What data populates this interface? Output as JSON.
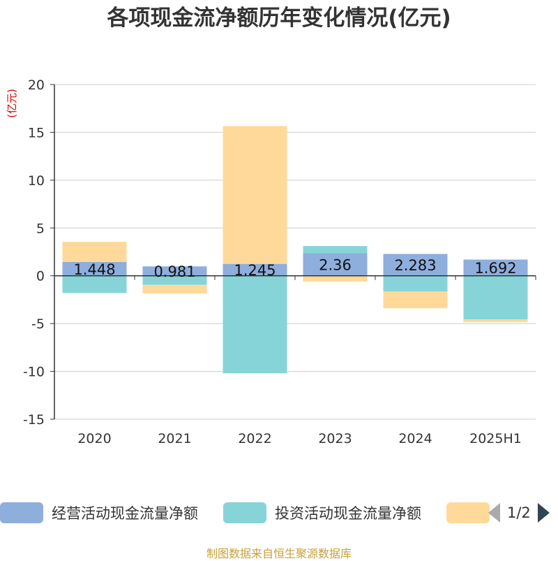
{
  "chart_data": {
    "type": "bar",
    "title": "各项现金流净额历年变化情况(亿元)",
    "ylabel": "(亿元)",
    "categories": [
      "2020",
      "2021",
      "2022",
      "2023",
      "2024",
      "2025H1"
    ],
    "ylim": [
      -15,
      20
    ],
    "yticks": [
      20,
      15,
      10,
      5,
      0,
      -5,
      -10,
      -15
    ],
    "ytick_labels": [
      "20",
      "15",
      "10",
      "5",
      "0",
      "-5",
      "-10",
      "-15"
    ],
    "grid": true,
    "legend_position": "bottom",
    "stacked": true,
    "series": [
      {
        "name": "经营活动现金流量净额",
        "color": "#8eaedc",
        "values": [
          1.448,
          0.981,
          1.245,
          2.36,
          2.283,
          1.692
        ],
        "labels": [
          "1.448",
          "0.981",
          "1.245",
          "2.36",
          "2.283",
          "1.692"
        ]
      },
      {
        "name": "投资活动现金流量净额",
        "color": "#86d4d8",
        "values": [
          -1.8,
          -0.95,
          -10.2,
          0.75,
          -1.65,
          -4.55
        ]
      },
      {
        "name": "",
        "color": "#ffd99a",
        "values": [
          2.1,
          -0.9,
          14.4,
          -0.6,
          -1.75,
          -0.3
        ]
      }
    ]
  },
  "legend": {
    "items": [
      {
        "label": "经营活动现金流量净额",
        "color": "#8eaedc"
      },
      {
        "label": "投资活动现金流量净额",
        "color": "#86d4d8"
      },
      {
        "label": "",
        "color": "#ffd99a"
      }
    ],
    "page": "1/2"
  },
  "source": "制图数据来自恒生聚源数据库"
}
